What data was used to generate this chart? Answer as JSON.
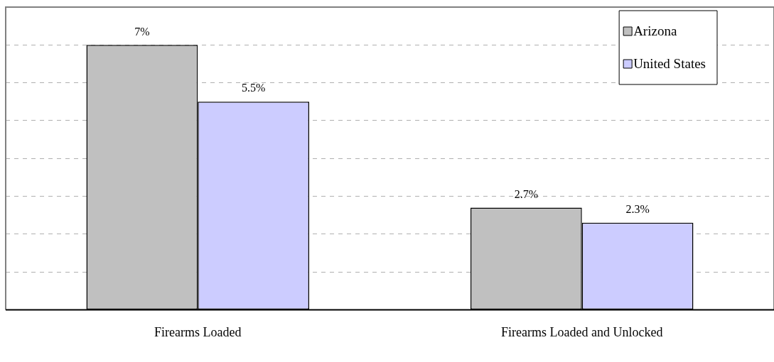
{
  "chart_data": {
    "type": "bar",
    "categories": [
      "Firearms Loaded",
      "Firearms Loaded and Unlocked"
    ],
    "series": [
      {
        "name": "Arizona",
        "color": "#c0c0c0",
        "values": [
          7,
          2.7
        ],
        "value_labels": [
          "7%",
          "2.7%"
        ]
      },
      {
        "name": "United States",
        "color": "#ccccff",
        "values": [
          5.5,
          2.3
        ],
        "value_labels": [
          "5.5%",
          "2.3%"
        ]
      }
    ],
    "ylim": [
      0,
      8
    ],
    "grid": "y",
    "legend": "top right",
    "tick_labels": "x"
  }
}
